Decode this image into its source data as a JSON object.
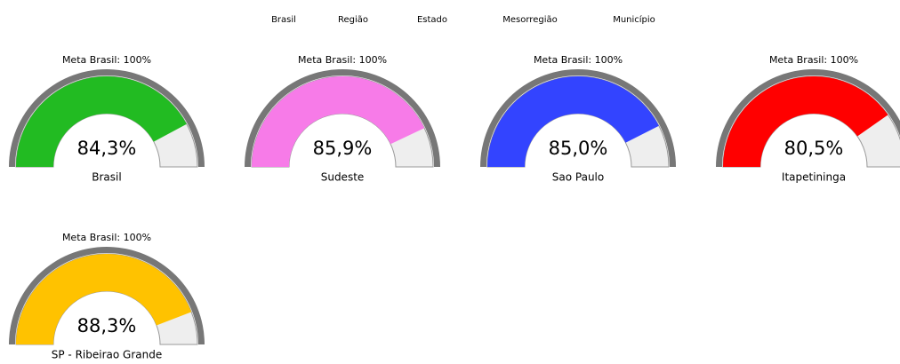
{
  "menu": [
    "Brasil",
    "Região",
    "Estado",
    "Mesorregião",
    "Município"
  ],
  "chart_data": [
    {
      "type": "gauge",
      "title": "Meta Brasil: 100%",
      "label": "Brasil",
      "value": 84.3,
      "value_label": "84,3%",
      "color": "#22bb22",
      "ylim": [
        0,
        100
      ]
    },
    {
      "type": "gauge",
      "title": "Meta Brasil: 100%",
      "label": "Sudeste",
      "value": 85.9,
      "value_label": "85,9%",
      "color": "#f77be8",
      "ylim": [
        0,
        100
      ]
    },
    {
      "type": "gauge",
      "title": "Meta Brasil: 100%",
      "label": "Sao Paulo",
      "value": 85.0,
      "value_label": "85,0%",
      "color": "#3344ff",
      "ylim": [
        0,
        100
      ]
    },
    {
      "type": "gauge",
      "title": "Meta Brasil: 100%",
      "label": "Itapetininga",
      "value": 80.5,
      "value_label": "80,5%",
      "color": "#ff0000",
      "ylim": [
        0,
        100
      ]
    },
    {
      "type": "gauge",
      "title": "Meta Brasil: 100%",
      "label": "SP - Ribeirao Grande",
      "value": 88.3,
      "value_label": "88,3%",
      "color": "#ffc200",
      "ylim": [
        0,
        100
      ]
    }
  ]
}
